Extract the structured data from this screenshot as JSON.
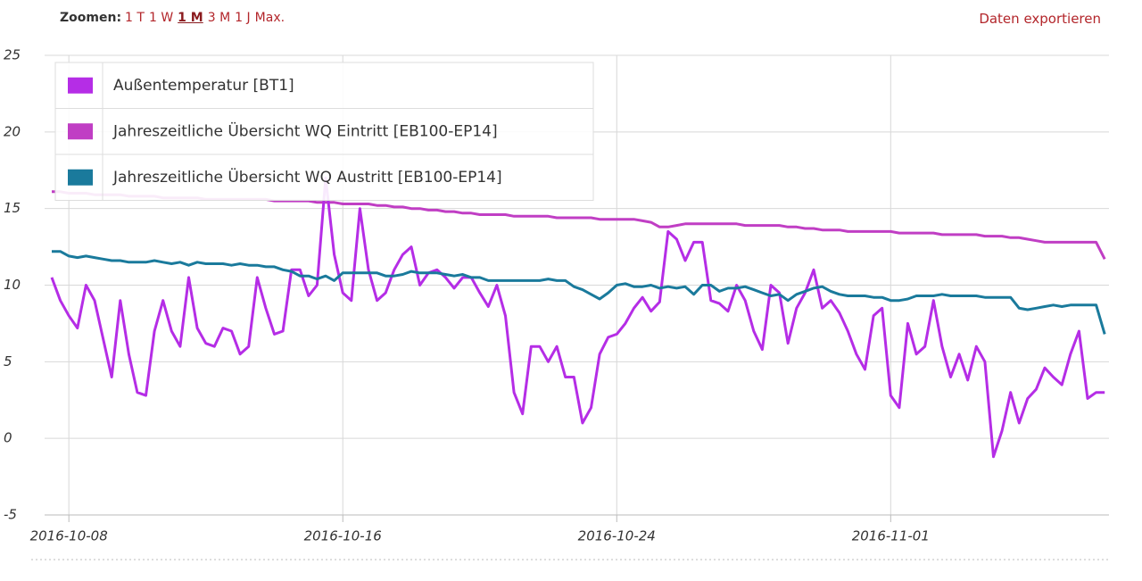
{
  "toolbar": {
    "zoom_label": "Zoomen:",
    "zoom_options": [
      "1 T",
      "1 W",
      "1 M",
      "3 M",
      "1 J",
      "Max."
    ],
    "active_zoom": 2,
    "export": "Daten exportieren"
  },
  "chart_data": {
    "type": "line",
    "x": [
      "2016-10-07 12:00",
      "2016-10-07 18:00",
      "2016-10-08 00:00",
      "2016-10-08 06:00",
      "2016-10-08 12:00",
      "2016-10-08 18:00",
      "2016-10-09 00:00",
      "2016-10-09 06:00",
      "2016-10-09 12:00",
      "2016-10-09 18:00",
      "2016-10-10 00:00",
      "2016-10-10 06:00",
      "2016-10-10 12:00",
      "2016-10-10 18:00",
      "2016-10-11 00:00",
      "2016-10-11 06:00",
      "2016-10-11 12:00",
      "2016-10-11 18:00",
      "2016-10-12 00:00",
      "2016-10-12 06:00",
      "2016-10-12 12:00",
      "2016-10-12 18:00",
      "2016-10-13 00:00",
      "2016-10-13 06:00",
      "2016-10-13 12:00",
      "2016-10-13 18:00",
      "2016-10-14 00:00",
      "2016-10-14 06:00",
      "2016-10-14 12:00",
      "2016-10-14 18:00",
      "2016-10-15 00:00",
      "2016-10-15 06:00",
      "2016-10-15 12:00",
      "2016-10-15 18:00",
      "2016-10-16 00:00",
      "2016-10-16 06:00",
      "2016-10-16 12:00",
      "2016-10-16 18:00",
      "2016-10-17 00:00",
      "2016-10-17 06:00",
      "2016-10-17 12:00",
      "2016-10-17 18:00",
      "2016-10-18 00:00",
      "2016-10-18 06:00",
      "2016-10-18 12:00",
      "2016-10-18 18:00",
      "2016-10-19 00:00",
      "2016-10-19 06:00",
      "2016-10-19 12:00",
      "2016-10-19 18:00",
      "2016-10-20 00:00",
      "2016-10-20 06:00",
      "2016-10-20 12:00",
      "2016-10-20 18:00",
      "2016-10-21 00:00",
      "2016-10-21 06:00",
      "2016-10-21 12:00",
      "2016-10-21 18:00",
      "2016-10-22 00:00",
      "2016-10-22 06:00",
      "2016-10-22 12:00",
      "2016-10-22 18:00",
      "2016-10-23 00:00",
      "2016-10-23 06:00",
      "2016-10-23 12:00",
      "2016-10-23 18:00",
      "2016-10-24 00:00",
      "2016-10-24 06:00",
      "2016-10-24 12:00",
      "2016-10-24 18:00",
      "2016-10-25 00:00",
      "2016-10-25 06:00",
      "2016-10-25 12:00",
      "2016-10-25 18:00",
      "2016-10-26 00:00",
      "2016-10-26 06:00",
      "2016-10-26 12:00",
      "2016-10-26 18:00",
      "2016-10-27 00:00",
      "2016-10-27 06:00",
      "2016-10-27 12:00",
      "2016-10-27 18:00",
      "2016-10-28 00:00",
      "2016-10-28 06:00",
      "2016-10-28 12:00",
      "2016-10-28 18:00",
      "2016-10-29 00:00",
      "2016-10-29 06:00",
      "2016-10-29 12:00",
      "2016-10-29 18:00",
      "2016-10-30 00:00",
      "2016-10-30 06:00",
      "2016-10-30 12:00",
      "2016-10-30 18:00",
      "2016-10-31 00:00",
      "2016-10-31 06:00",
      "2016-10-31 12:00",
      "2016-10-31 18:00",
      "2016-11-01 00:00",
      "2016-11-01 06:00",
      "2016-11-01 12:00",
      "2016-11-01 18:00",
      "2016-11-02 00:00",
      "2016-11-02 06:00",
      "2016-11-02 12:00",
      "2016-11-02 18:00",
      "2016-11-03 00:00",
      "2016-11-03 06:00",
      "2016-11-03 12:00",
      "2016-11-03 18:00",
      "2016-11-04 00:00",
      "2016-11-04 06:00",
      "2016-11-04 12:00",
      "2016-11-04 18:00",
      "2016-11-05 00:00",
      "2016-11-05 06:00",
      "2016-11-05 12:00",
      "2016-11-05 18:00",
      "2016-11-06 00:00",
      "2016-11-06 06:00",
      "2016-11-06 12:00",
      "2016-11-06 18:00",
      "2016-11-07 00:00",
      "2016-11-07 06:00"
    ],
    "series": [
      {
        "name": "Jahreszeitliche Übersicht WQ Eintritt [EB100-EP14]",
        "color": "#c03ec4",
        "values": [
          16.1,
          16.1,
          16.0,
          16.0,
          16.0,
          15.9,
          15.9,
          15.9,
          15.9,
          15.8,
          15.8,
          15.8,
          15.8,
          15.7,
          15.7,
          15.7,
          15.7,
          15.7,
          15.6,
          15.6,
          15.6,
          15.6,
          15.6,
          15.6,
          15.6,
          15.6,
          15.5,
          15.5,
          15.5,
          15.5,
          15.5,
          15.4,
          15.4,
          15.4,
          15.3,
          15.3,
          15.3,
          15.3,
          15.2,
          15.2,
          15.1,
          15.1,
          15.0,
          15.0,
          14.9,
          14.9,
          14.8,
          14.8,
          14.7,
          14.7,
          14.6,
          14.6,
          14.6,
          14.6,
          14.5,
          14.5,
          14.5,
          14.5,
          14.5,
          14.4,
          14.4,
          14.4,
          14.4,
          14.4,
          14.3,
          14.3,
          14.3,
          14.3,
          14.3,
          14.2,
          14.1,
          13.8,
          13.8,
          13.9,
          14.0,
          14.0,
          14.0,
          14.0,
          14.0,
          14.0,
          14.0,
          13.9,
          13.9,
          13.9,
          13.9,
          13.9,
          13.8,
          13.8,
          13.7,
          13.7,
          13.6,
          13.6,
          13.6,
          13.5,
          13.5,
          13.5,
          13.5,
          13.5,
          13.5,
          13.4,
          13.4,
          13.4,
          13.4,
          13.4,
          13.3,
          13.3,
          13.3,
          13.3,
          13.3,
          13.2,
          13.2,
          13.2,
          13.1,
          13.1,
          13.0,
          12.9,
          12.8,
          12.8,
          12.8,
          12.8,
          12.8,
          12.8,
          12.8,
          11.7
        ]
      },
      {
        "name": "Außentemperatur [BT1]",
        "color": "#b52de6",
        "values": [
          10.5,
          9,
          8,
          7.2,
          10,
          9,
          6.5,
          4,
          9,
          5.5,
          3,
          2.8,
          7,
          9,
          7,
          6,
          10.5,
          7.2,
          6.2,
          6,
          7.2,
          7,
          5.5,
          6,
          10.5,
          8.5,
          6.8,
          7,
          11,
          11,
          9.3,
          10,
          17,
          12,
          9.5,
          9,
          15,
          11,
          9,
          9.5,
          11,
          12,
          12.5,
          10,
          10.8,
          11,
          10.5,
          9.8,
          10.5,
          10.5,
          9.5,
          8.6,
          10,
          8,
          3,
          1.6,
          6,
          6,
          5,
          6,
          4,
          4,
          1,
          2,
          5.5,
          6.6,
          6.8,
          7.5,
          8.5,
          9.2,
          8.3,
          8.9,
          13.5,
          13,
          11.6,
          12.8,
          12.8,
          9,
          8.8,
          8.3,
          10,
          9,
          7,
          5.8,
          10,
          9.5,
          6.2,
          8.5,
          9.5,
          11,
          8.5,
          9,
          8.2,
          7,
          5.5,
          4.5,
          8,
          8.5,
          2.8,
          2,
          7.5,
          5.5,
          6,
          9,
          6,
          4,
          5.5,
          3.8,
          6,
          5,
          -1.2,
          0.5,
          3,
          1,
          2.6,
          3.2,
          4.6,
          4,
          3.5,
          5.5,
          7,
          2.6,
          3,
          3
        ]
      },
      {
        "name": "Jahreszeitliche Übersicht WQ Austritt [EB100-EP14]",
        "color": "#1a7a9c",
        "values": [
          12.2,
          12.2,
          11.9,
          11.8,
          11.9,
          11.8,
          11.7,
          11.6,
          11.6,
          11.5,
          11.5,
          11.5,
          11.6,
          11.5,
          11.4,
          11.5,
          11.3,
          11.5,
          11.4,
          11.4,
          11.4,
          11.3,
          11.4,
          11.3,
          11.3,
          11.2,
          11.2,
          11.0,
          10.9,
          10.6,
          10.6,
          10.4,
          10.6,
          10.3,
          10.8,
          10.8,
          10.8,
          10.8,
          10.8,
          10.6,
          10.6,
          10.7,
          10.9,
          10.8,
          10.8,
          10.8,
          10.7,
          10.6,
          10.7,
          10.5,
          10.5,
          10.3,
          10.3,
          10.3,
          10.3,
          10.3,
          10.3,
          10.3,
          10.4,
          10.3,
          10.3,
          9.9,
          9.7,
          9.4,
          9.1,
          9.5,
          10.0,
          10.1,
          9.9,
          9.9,
          10.0,
          9.8,
          9.9,
          9.8,
          9.9,
          9.4,
          10.0,
          10.0,
          9.6,
          9.8,
          9.8,
          9.9,
          9.7,
          9.5,
          9.3,
          9.4,
          9.0,
          9.4,
          9.6,
          9.8,
          9.9,
          9.6,
          9.4,
          9.3,
          9.3,
          9.3,
          9.2,
          9.2,
          9.0,
          9.0,
          9.1,
          9.3,
          9.3,
          9.3,
          9.4,
          9.3,
          9.3,
          9.3,
          9.3,
          9.2,
          9.2,
          9.2,
          9.2,
          8.5,
          8.4,
          8.5,
          8.6,
          8.7,
          8.6,
          8.7,
          8.7,
          8.7,
          8.7,
          6.8
        ]
      }
    ],
    "legend_order": [
      1,
      0,
      2
    ],
    "legend": "upper left",
    "xlim": [
      "2016-10-07 07:00",
      "2016-11-07 09:00"
    ],
    "xticks": [
      "2016-10-08",
      "2016-10-16",
      "2016-10-24",
      "2016-11-01"
    ],
    "ylim": [
      -5,
      25
    ],
    "yticks": [
      -5,
      0,
      5,
      10,
      15,
      20,
      25
    ],
    "grid": true
  }
}
